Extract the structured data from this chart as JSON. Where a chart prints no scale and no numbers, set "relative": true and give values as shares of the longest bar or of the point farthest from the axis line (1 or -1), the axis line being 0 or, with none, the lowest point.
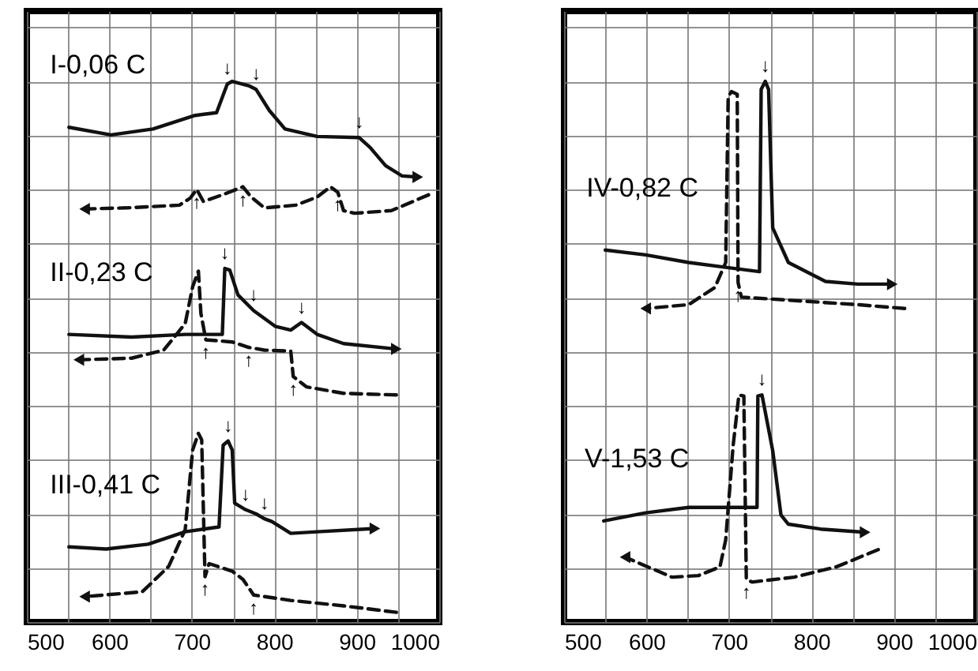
{
  "chart_data": [
    {
      "type": "line",
      "relative": true,
      "legend": false,
      "grid": true,
      "xlim": [
        500,
        1000
      ],
      "xticks": [
        500,
        {
          "value": 550,
          "label": null
        },
        600,
        {
          "value": 650,
          "label": null
        },
        700,
        {
          "value": 750,
          "label": null
        },
        800,
        {
          "value": 850,
          "label": null
        },
        900,
        {
          "value": 950,
          "label": null
        },
        1000
      ],
      "series": [
        {
          "name": "I-0,06 C",
          "color": "#111111",
          "line_style": "solid",
          "x": [
            551,
            602,
            653,
            704,
            730,
            743,
            749,
            769,
            778,
            794,
            813,
            852,
            903,
            916,
            935,
            955,
            974
          ],
          "values": [
            0.915,
            0.901,
            0.912,
            0.937,
            0.942,
            0.995,
            1.0,
            0.992,
            0.985,
            0.946,
            0.912,
            0.898,
            0.896,
            0.878,
            0.844,
            0.825,
            0.823
          ]
        },
        {
          "color": "#111111",
          "line_style": "dashed",
          "x": [
            987,
            942,
            897,
            884,
            877,
            868,
            852,
            826,
            788,
            772,
            762,
            737,
            714,
            706,
            698,
            685,
            621,
            570
          ],
          "values": [
            0.79,
            0.761,
            0.756,
            0.761,
            0.795,
            0.805,
            0.786,
            0.771,
            0.766,
            0.786,
            0.805,
            0.79,
            0.778,
            0.8,
            0.784,
            0.771,
            0.766,
            0.764
          ]
        },
        {
          "name": "II-0,23 C",
          "color": "#111111",
          "line_style": "solid",
          "x": [
            551,
            627,
            692,
            737,
            740,
            746,
            756,
            775,
            801,
            820,
            833,
            852,
            884,
            948
          ],
          "values": [
            0.532,
            0.527,
            0.532,
            0.532,
            0.654,
            0.651,
            0.605,
            0.576,
            0.547,
            0.54,
            0.554,
            0.532,
            0.515,
            0.505
          ]
        },
        {
          "color": "#111111",
          "line_style": "dashed",
          "x": [
            948,
            884,
            839,
            823,
            820,
            788,
            769,
            749,
            717,
            711,
            708,
            701,
            692,
            666,
            627,
            563
          ],
          "values": [
            0.42,
            0.423,
            0.435,
            0.454,
            0.501,
            0.503,
            0.508,
            0.518,
            0.522,
            0.571,
            0.649,
            0.62,
            0.552,
            0.503,
            0.488,
            0.485
          ]
        },
        {
          "name": "III-0,41 C",
          "color": "#111111",
          "line_style": "solid",
          "x": [
            551,
            596,
            647,
            692,
            733,
            738,
            744,
            749,
            752,
            765,
            778,
            788,
            797,
            820,
            852,
            922
          ],
          "values": [
            0.139,
            0.135,
            0.144,
            0.167,
            0.176,
            0.327,
            0.335,
            0.318,
            0.22,
            0.208,
            0.2,
            0.191,
            0.186,
            0.164,
            0.167,
            0.173
          ]
        },
        {
          "color": "#111111",
          "line_style": "dashed",
          "x": [
            948,
            884,
            820,
            775,
            762,
            749,
            721,
            716,
            712,
            708,
            701,
            692,
            672,
            640,
            570
          ],
          "values": [
            0.018,
            0.03,
            0.04,
            0.05,
            0.079,
            0.094,
            0.108,
            0.084,
            0.337,
            0.349,
            0.318,
            0.171,
            0.103,
            0.056,
            0.047
          ]
        }
      ],
      "annotations": [
        {
          "text": "↓",
          "x": 743,
          "y": 0.995
        },
        {
          "text": "↓",
          "x": 778,
          "y": 0.985
        },
        {
          "text": "↓",
          "x": 903,
          "y": 0.896
        },
        {
          "text": "↑",
          "x": 706,
          "y": 0.8
        },
        {
          "text": "↑",
          "x": 762,
          "y": 0.805
        },
        {
          "text": "↑",
          "x": 877,
          "y": 0.795
        },
        {
          "text": "↓",
          "x": 740,
          "y": 0.654
        },
        {
          "text": "↓",
          "x": 775,
          "y": 0.576
        },
        {
          "text": "↓",
          "x": 833,
          "y": 0.554
        },
        {
          "text": "↑",
          "x": 717,
          "y": 0.522
        },
        {
          "text": "↑",
          "x": 769,
          "y": 0.508
        },
        {
          "text": "↑",
          "x": 823,
          "y": 0.454
        },
        {
          "text": "↓",
          "x": 744,
          "y": 0.335
        },
        {
          "text": "↓",
          "x": 765,
          "y": 0.208
        },
        {
          "text": "↓",
          "x": 788,
          "y": 0.191
        },
        {
          "text": "↑",
          "x": 716,
          "y": 0.084
        },
        {
          "text": "↑",
          "x": 775,
          "y": 0.05
        }
      ]
    },
    {
      "type": "line",
      "relative": true,
      "legend": false,
      "grid": true,
      "xlim": [
        500,
        1000
      ],
      "xticks": [
        500,
        {
          "value": 550,
          "label": null
        },
        600,
        {
          "value": 650,
          "label": null
        },
        700,
        {
          "value": 750,
          "label": null
        },
        800,
        {
          "value": 850,
          "label": null
        },
        900,
        {
          "value": 950,
          "label": null
        },
        1000
      ],
      "series": [
        {
          "name": "IV-0,82 C",
          "color": "#111111",
          "line_style": "solid",
          "x": [
            550,
            599,
            651,
            696,
            737,
            739,
            744,
            748,
            753,
            772,
            817,
            856,
            898
          ],
          "values": [
            0.688,
            0.679,
            0.665,
            0.656,
            0.648,
            0.985,
            1.0,
            0.985,
            0.729,
            0.665,
            0.63,
            0.625,
            0.625
          ]
        },
        {
          "color": "#111111",
          "line_style": "dashed",
          "x": [
            913,
            856,
            715,
            711,
            710,
            703,
            699,
            696,
            683,
            651,
            599
          ],
          "values": [
            0.58,
            0.587,
            0.601,
            0.628,
            0.976,
            0.981,
            0.971,
            0.665,
            0.619,
            0.587,
            0.58
          ]
        },
        {
          "name": "V-1,53 C",
          "color": "#111111",
          "line_style": "solid",
          "x": [
            548,
            599,
            651,
            696,
            734,
            735,
            740,
            753,
            763,
            772,
            811,
            865
          ],
          "values": [
            0.187,
            0.202,
            0.212,
            0.212,
            0.212,
            0.418,
            0.42,
            0.317,
            0.198,
            0.181,
            0.172,
            0.166
          ]
        },
        {
          "color": "#111111",
          "line_style": "dashed",
          "x": [
            881,
            830,
            779,
            728,
            721,
            718,
            712,
            705,
            696,
            689,
            663,
            631,
            574
          ],
          "values": [
            0.134,
            0.102,
            0.083,
            0.074,
            0.079,
            0.418,
            0.42,
            0.326,
            0.152,
            0.102,
            0.086,
            0.083,
            0.12
          ]
        }
      ],
      "annotations": [
        {
          "text": "↓",
          "x": 744,
          "y": 1.0
        },
        {
          "text": "↑",
          "x": 711,
          "y": 0.628
        },
        {
          "text": "↓",
          "x": 740,
          "y": 0.42
        },
        {
          "text": "↑",
          "x": 721,
          "y": 0.079
        }
      ]
    }
  ]
}
